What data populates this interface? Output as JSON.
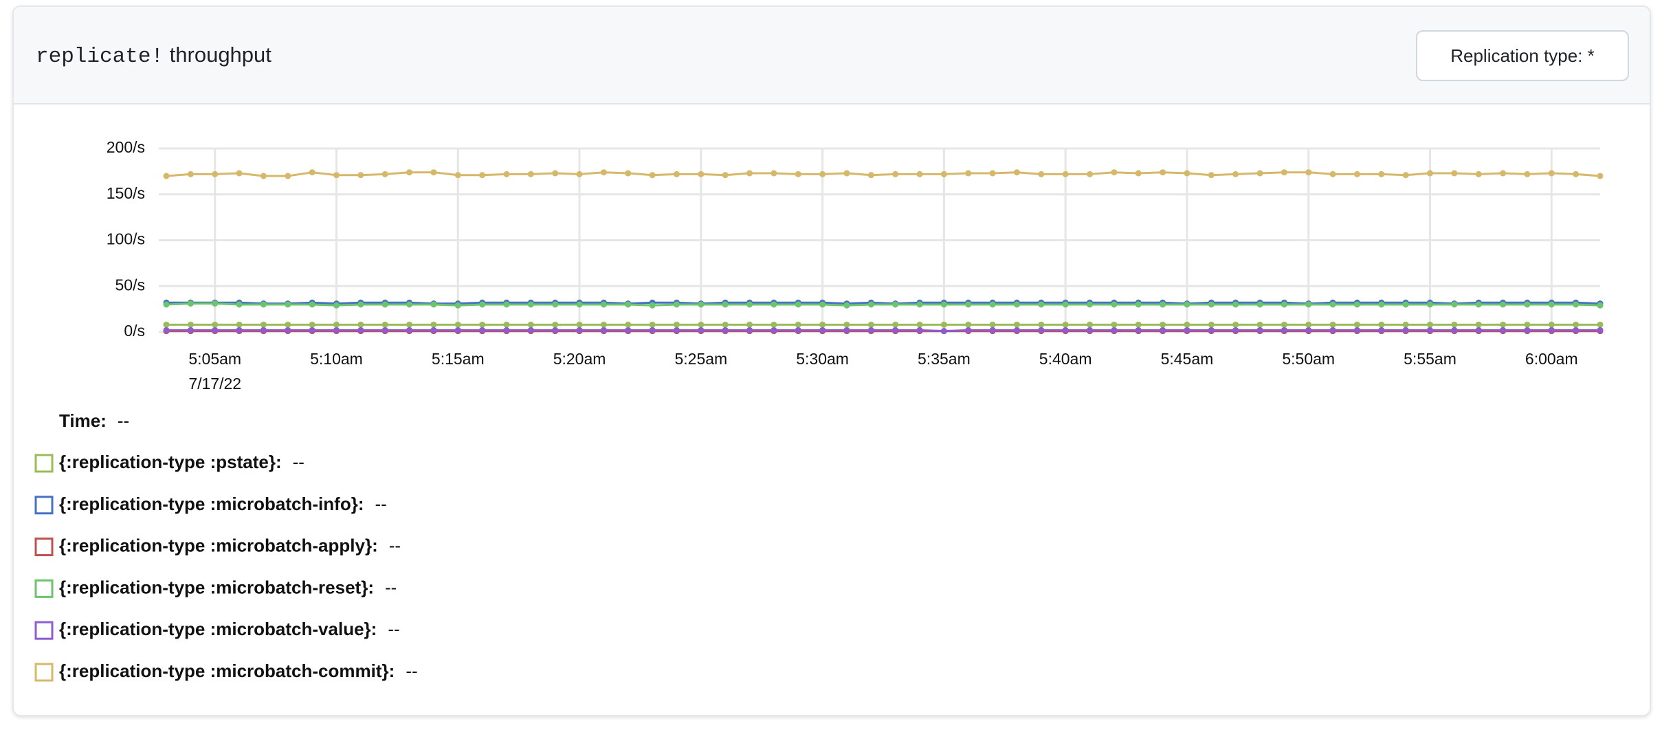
{
  "header": {
    "title_code": "replicate!",
    "title_text": "throughput"
  },
  "controls": {
    "filter_button": "Replication type: *"
  },
  "chart_data": {
    "type": "line",
    "x": [
      "5:03am",
      "5:04am",
      "5:05am",
      "5:06am",
      "5:07am",
      "5:08am",
      "5:09am",
      "5:10am",
      "5:11am",
      "5:12am",
      "5:13am",
      "5:14am",
      "5:15am",
      "5:16am",
      "5:17am",
      "5:18am",
      "5:19am",
      "5:20am",
      "5:21am",
      "5:22am",
      "5:23am",
      "5:24am",
      "5:25am",
      "5:26am",
      "5:27am",
      "5:28am",
      "5:29am",
      "5:30am",
      "5:31am",
      "5:32am",
      "5:33am",
      "5:34am",
      "5:35am",
      "5:36am",
      "5:37am",
      "5:38am",
      "5:39am",
      "5:40am",
      "5:41am",
      "5:42am",
      "5:43am",
      "5:44am",
      "5:45am",
      "5:46am",
      "5:47am",
      "5:48am",
      "5:49am",
      "5:50am",
      "5:51am",
      "5:52am",
      "5:53am",
      "5:54am",
      "5:55am",
      "5:56am",
      "5:57am",
      "5:58am",
      "5:59am",
      "6:00am",
      "6:01am",
      "6:02am"
    ],
    "x_date_label": "7/17/22",
    "xticks": [
      "5:05am",
      "5:10am",
      "5:15am",
      "5:20am",
      "5:25am",
      "5:30am",
      "5:35am",
      "5:40am",
      "5:45am",
      "5:50am",
      "5:55am",
      "6:00am"
    ],
    "ylim": [
      0,
      200
    ],
    "yticks": [
      {
        "value": 0,
        "label": "0/s"
      },
      {
        "value": 50,
        "label": "50/s"
      },
      {
        "value": 100,
        "label": "100/s"
      },
      {
        "value": 150,
        "label": "150/s"
      },
      {
        "value": 200,
        "label": "200/s"
      }
    ],
    "grid": true,
    "series": [
      {
        "name": "{:replication-type :pstate}",
        "color": "#9bbb59",
        "values": [
          8,
          8,
          8,
          8,
          8,
          8,
          8,
          8,
          8,
          8,
          8,
          8,
          8,
          8,
          8,
          8,
          8,
          8,
          8,
          8,
          8,
          8,
          8,
          8,
          8,
          8,
          8,
          8,
          8,
          8,
          8,
          8,
          8,
          8,
          8,
          8,
          8,
          8,
          8,
          8,
          8,
          8,
          8,
          8,
          8,
          8,
          8,
          8,
          8,
          8,
          8,
          8,
          8,
          8,
          8,
          8,
          8,
          8,
          8,
          8
        ]
      },
      {
        "name": "{:replication-type :microbatch-info}",
        "color": "#4472c4",
        "values": [
          32,
          32,
          32,
          32,
          31,
          31,
          32,
          31,
          32,
          32,
          32,
          31,
          31,
          32,
          32,
          32,
          32,
          32,
          32,
          31,
          32,
          32,
          31,
          32,
          32,
          32,
          32,
          32,
          31,
          32,
          31,
          32,
          32,
          32,
          32,
          32,
          32,
          32,
          32,
          32,
          32,
          32,
          31,
          32,
          32,
          32,
          32,
          31,
          32,
          32,
          32,
          32,
          32,
          31,
          32,
          32,
          32,
          32,
          32,
          31
        ]
      },
      {
        "name": "{:replication-type :microbatch-apply}",
        "color": "#c0504d",
        "values": [
          1,
          1,
          1,
          1,
          1,
          1,
          1,
          1,
          1,
          1,
          1,
          1,
          1,
          1,
          1,
          1,
          1,
          1,
          1,
          1,
          1,
          1,
          1,
          1,
          1,
          1,
          1,
          1,
          1,
          1,
          1,
          1,
          1,
          1,
          1,
          1,
          1,
          1,
          1,
          1,
          1,
          1,
          1,
          1,
          1,
          1,
          1,
          1,
          1,
          1,
          1,
          1,
          1,
          1,
          1,
          1,
          1,
          1,
          1,
          1
        ]
      },
      {
        "name": "{:replication-type :microbatch-reset}",
        "color": "#6cc46c",
        "values": [
          30,
          31,
          31,
          30,
          30,
          30,
          30,
          29,
          30,
          30,
          30,
          30,
          29,
          30,
          30,
          30,
          30,
          30,
          30,
          30,
          29,
          30,
          30,
          30,
          30,
          30,
          30,
          30,
          29,
          30,
          30,
          30,
          30,
          30,
          30,
          30,
          30,
          30,
          30,
          30,
          30,
          30,
          30,
          30,
          30,
          30,
          30,
          30,
          30,
          30,
          30,
          30,
          30,
          30,
          30,
          30,
          30,
          30,
          30,
          29
        ]
      },
      {
        "name": "{:replication-type :microbatch-value}",
        "color": "#8e5bd0",
        "values": [
          2,
          2,
          2,
          2,
          2,
          2,
          2,
          2,
          2,
          2,
          2,
          2,
          2,
          2,
          2,
          2,
          2,
          2,
          2,
          2,
          2,
          2,
          2,
          2,
          2,
          2,
          2,
          2,
          2,
          2,
          2,
          2,
          1,
          2,
          2,
          2,
          2,
          2,
          2,
          2,
          2,
          2,
          2,
          2,
          2,
          2,
          2,
          2,
          2,
          2,
          2,
          2,
          2,
          2,
          2,
          2,
          2,
          2,
          2,
          2
        ]
      },
      {
        "name": "{:replication-type :microbatch-commit}",
        "color": "#d6b86a",
        "values": [
          170,
          172,
          172,
          173,
          170,
          170,
          174,
          171,
          171,
          172,
          174,
          174,
          171,
          171,
          172,
          172,
          173,
          172,
          174,
          173,
          171,
          172,
          172,
          171,
          173,
          173,
          172,
          172,
          173,
          171,
          172,
          172,
          172,
          173,
          173,
          174,
          172,
          172,
          172,
          174,
          173,
          174,
          173,
          171,
          172,
          173,
          174,
          174,
          172,
          172,
          172,
          171,
          173,
          173,
          172,
          173,
          172,
          173,
          172,
          170
        ]
      }
    ]
  },
  "legend": {
    "time_label": "Time:",
    "separator": ":",
    "empty_value": "--"
  }
}
